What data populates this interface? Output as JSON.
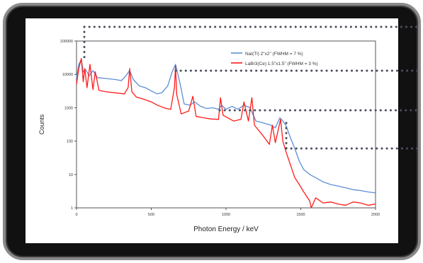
{
  "chart_data": {
    "type": "line",
    "title": "",
    "xlabel": "Photon Energy / keV",
    "ylabel": "Counts",
    "xlim": [
      0,
      2000
    ],
    "ylim": [
      1,
      100000
    ],
    "yscale": "log",
    "grid": false,
    "legend_position": "top-right",
    "x_ticks": [
      0,
      500,
      1000,
      1500,
      2000
    ],
    "y_ticks": [
      1,
      10,
      100,
      1000,
      10000,
      100000
    ],
    "series": [
      {
        "name": "NaI(Tl) 2\"x2\" (FWHM = 7 %)",
        "color": "#5b8fd6",
        "x": [
          0,
          15,
          32,
          45,
          60,
          85,
          110,
          140,
          200,
          260,
          300,
          330,
          355,
          380,
          420,
          460,
          500,
          540,
          570,
          610,
          640,
          662,
          690,
          720,
          760,
          790,
          830,
          870,
          910,
          950,
          970,
          1000,
          1040,
          1080,
          1120,
          1160,
          1200,
          1250,
          1300,
          1330,
          1360,
          1380,
          1400,
          1430,
          1460,
          1490,
          1520,
          1560,
          1600,
          1650,
          1700,
          1750,
          1800,
          1850,
          1900,
          1950,
          2000
        ],
        "y": [
          8000,
          20000,
          28000,
          12000,
          14000,
          9000,
          13000,
          8000,
          7500,
          7000,
          6500,
          9000,
          13000,
          7000,
          4500,
          4000,
          3200,
          2600,
          2800,
          4500,
          12000,
          20000,
          6000,
          1300,
          1200,
          1500,
          1100,
          950,
          1000,
          900,
          1200,
          900,
          1100,
          900,
          1200,
          1000,
          400,
          350,
          300,
          250,
          500,
          400,
          300,
          130,
          60,
          25,
          14,
          10,
          8,
          6,
          5,
          4.5,
          4,
          3.5,
          3.3,
          3,
          2.8
        ]
      },
      {
        "name": "LaBr3(Ce) 1.5\"x1.5\" (FWHM = 3 %)",
        "color": "#ff1a1a",
        "x": [
          0,
          15,
          32,
          45,
          55,
          70,
          90,
          110,
          125,
          150,
          200,
          260,
          320,
          345,
          356,
          370,
          400,
          450,
          500,
          540,
          600,
          630,
          655,
          662,
          670,
          700,
          750,
          778,
          800,
          850,
          900,
          950,
          963,
          980,
          1050,
          1100,
          1120,
          1150,
          1173,
          1190,
          1250,
          1290,
          1310,
          1330,
          1365,
          1380,
          1400,
          1430,
          1460,
          1490,
          1520,
          1560,
          1570,
          1600,
          1650,
          1700,
          1750,
          1800,
          1850,
          1900,
          1950,
          2000
        ],
        "y": [
          5000,
          15000,
          30000,
          6000,
          15000,
          4000,
          20000,
          3500,
          12000,
          3300,
          3000,
          2800,
          2600,
          4000,
          15000,
          3000,
          2100,
          1800,
          1500,
          1200,
          950,
          900,
          4000,
          18000,
          2500,
          650,
          800,
          2200,
          550,
          500,
          460,
          450,
          2000,
          600,
          400,
          450,
          1500,
          400,
          2000,
          300,
          140,
          80,
          300,
          90,
          450,
          100,
          50,
          20,
          8,
          5,
          3,
          1.6,
          1,
          2,
          1.4,
          1.5,
          1.3,
          1.2,
          1.5,
          1.4,
          1.2,
          1.3
        ]
      }
    ]
  }
}
